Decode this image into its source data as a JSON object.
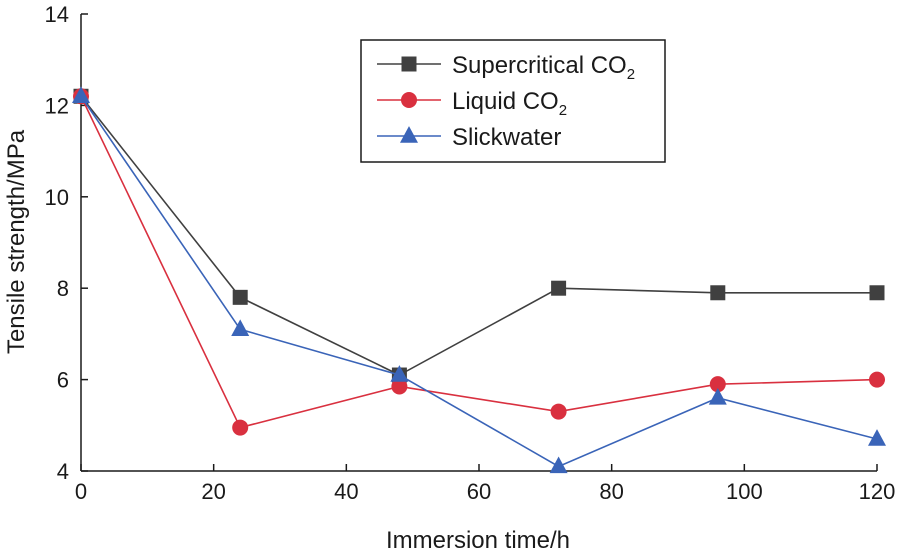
{
  "chart_data": {
    "type": "line",
    "title": "",
    "xlabel": "Immersion time/h",
    "ylabel": "Tensile strength/MPa",
    "x": [
      0,
      24,
      48,
      72,
      96,
      120
    ],
    "xlim": [
      0,
      120
    ],
    "ylim": [
      4,
      14
    ],
    "xticks": [
      "0",
      "20",
      "40",
      "60",
      "80",
      "100",
      "120"
    ],
    "yticks": [
      "4",
      "6",
      "8",
      "10",
      "12",
      "14"
    ],
    "grid": false,
    "legend_position": "top-right",
    "series": [
      {
        "name": "Supercritical CO",
        "name_subscript": "2",
        "marker": "square",
        "color": "#404040",
        "values": [
          12.2,
          7.8,
          6.1,
          8.0,
          7.9,
          7.9
        ]
      },
      {
        "name": "Liquid CO",
        "name_subscript": "2",
        "marker": "circle",
        "color": "#d9303f",
        "values": [
          12.2,
          4.95,
          5.85,
          5.3,
          5.9,
          6.0
        ]
      },
      {
        "name": "Slickwater",
        "name_subscript": "",
        "marker": "triangle",
        "color": "#3a64b8",
        "values": [
          12.2,
          7.1,
          6.1,
          4.1,
          5.6,
          4.7
        ]
      }
    ]
  }
}
